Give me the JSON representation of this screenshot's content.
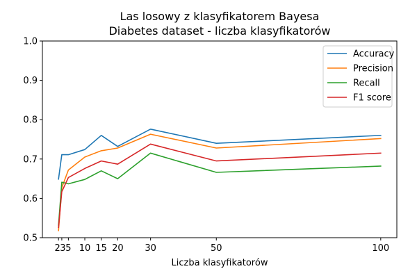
{
  "chart_data": {
    "type": "line",
    "title": "Las losowy z klasyfikatorem Bayesa",
    "subtitle": "Diabetes dataset - liczba klasyfikatorów",
    "xlabel": "Liczba klasyfikatorów",
    "ylabel": "",
    "x": [
      2,
      3,
      5,
      10,
      15,
      20,
      30,
      50,
      100
    ],
    "x_ticks": [
      2,
      3,
      5,
      10,
      15,
      20,
      30,
      50,
      100
    ],
    "x_tick_labels": [
      "2",
      "3",
      "5",
      "10",
      "15",
      "20",
      "30",
      "50",
      "100"
    ],
    "xlim": [
      -2.9,
      104.9
    ],
    "ylim": [
      0.5,
      1.0
    ],
    "y_ticks": [
      0.5,
      0.6,
      0.7,
      0.8,
      0.9,
      1.0
    ],
    "y_tick_labels": [
      "0.5",
      "0.6",
      "0.7",
      "0.8",
      "0.9",
      "1.0"
    ],
    "grid": false,
    "legend_position": "top-right",
    "series": [
      {
        "name": "Accuracy",
        "color": "#1f77b4",
        "values": [
          0.649,
          0.711,
          0.711,
          0.724,
          0.76,
          0.732,
          0.776,
          0.74,
          0.76
        ]
      },
      {
        "name": "Precision",
        "color": "#ff7f0e",
        "values": [
          0.518,
          0.627,
          0.672,
          0.705,
          0.721,
          0.728,
          0.763,
          0.728,
          0.752
        ]
      },
      {
        "name": "Recall",
        "color": "#2ca02c",
        "values": [
          0.532,
          0.641,
          0.637,
          0.648,
          0.67,
          0.65,
          0.715,
          0.666,
          0.682
        ]
      },
      {
        "name": "F1 score",
        "color": "#d62728",
        "values": [
          0.526,
          0.617,
          0.653,
          0.676,
          0.695,
          0.687,
          0.738,
          0.695,
          0.715
        ]
      }
    ]
  }
}
